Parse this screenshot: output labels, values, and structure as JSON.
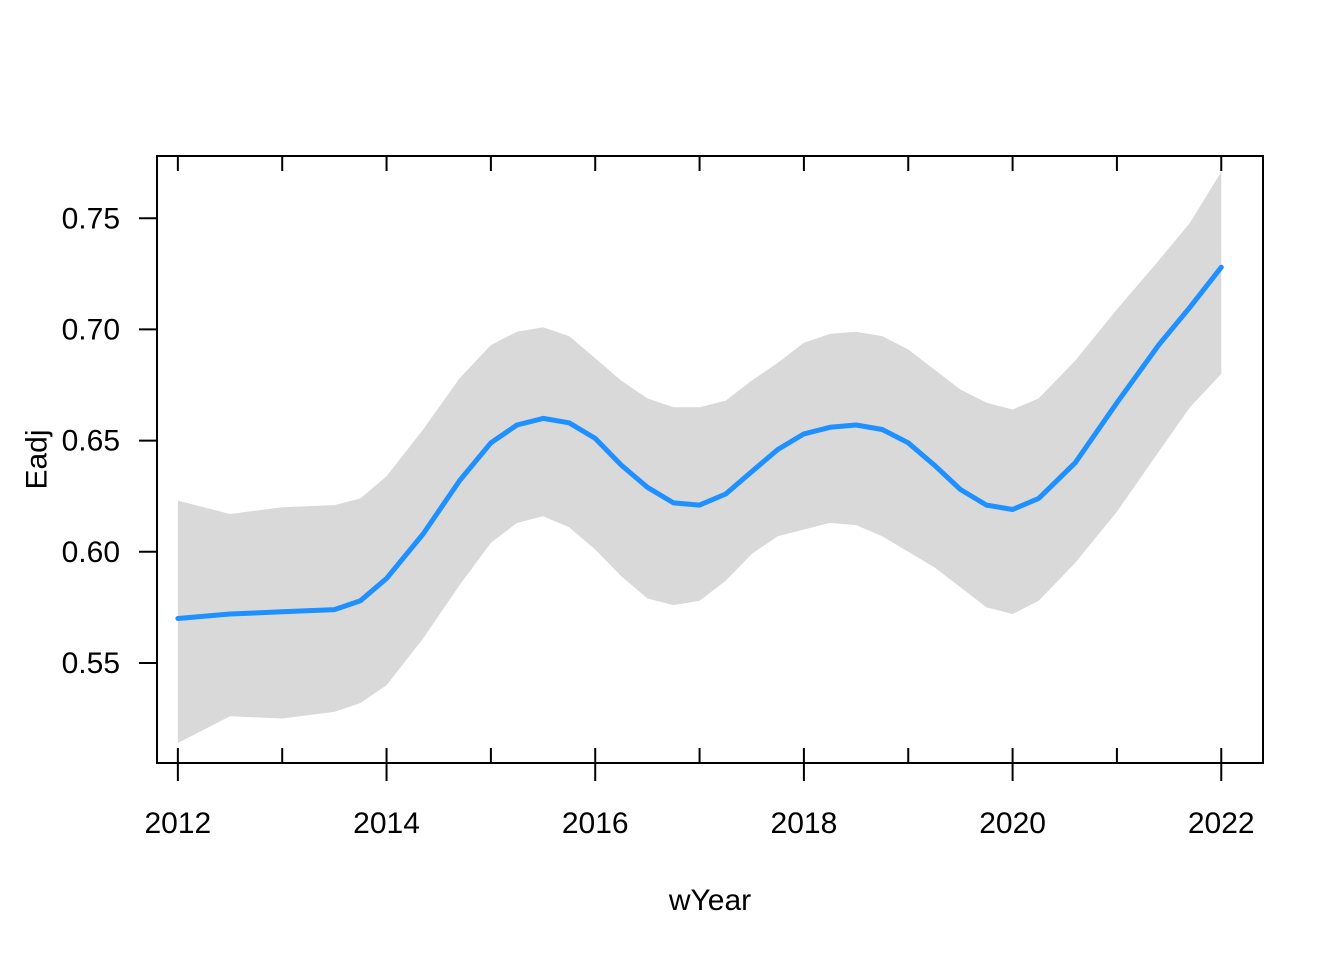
{
  "chart_data": {
    "type": "line",
    "title": "",
    "xlabel": "wYear",
    "ylabel": "Eadj",
    "xlim": [
      2011.8,
      2022.4
    ],
    "ylim": [
      0.505,
      0.778
    ],
    "x_ticks": [
      2012,
      2014,
      2016,
      2018,
      2020,
      2022
    ],
    "x_tick_labels": [
      "2012",
      "2014",
      "2016",
      "2018",
      "2020",
      "2022"
    ],
    "x_minor_ticks": [
      2013,
      2015,
      2017,
      2019,
      2021
    ],
    "y_ticks": [
      0.55,
      0.6,
      0.65,
      0.7,
      0.75
    ],
    "y_tick_labels": [
      "0.55",
      "0.60",
      "0.65",
      "0.70",
      "0.75"
    ],
    "grid": false,
    "line_color": "#1E90FF",
    "band_color": "#D9D9D9",
    "series": [
      {
        "x": [
          2012.0,
          2012.5,
          2013.0,
          2013.5,
          2013.75,
          2014.0,
          2014.35,
          2014.7,
          2015.0,
          2015.25,
          2015.5,
          2015.75,
          2016.0,
          2016.25,
          2016.5,
          2016.75,
          2017.0,
          2017.25,
          2017.5,
          2017.75,
          2018.0,
          2018.25,
          2018.5,
          2018.75,
          2019.0,
          2019.25,
          2019.5,
          2019.75,
          2020.0,
          2020.25,
          2020.6,
          2021.0,
          2021.4,
          2021.7,
          2022.0
        ],
        "y": [
          0.57,
          0.572,
          0.573,
          0.574,
          0.578,
          0.588,
          0.608,
          0.632,
          0.649,
          0.657,
          0.66,
          0.658,
          0.651,
          0.639,
          0.629,
          0.622,
          0.621,
          0.626,
          0.636,
          0.646,
          0.653,
          0.656,
          0.657,
          0.655,
          0.649,
          0.639,
          0.628,
          0.621,
          0.619,
          0.624,
          0.64,
          0.667,
          0.693,
          0.71,
          0.728
        ],
        "lower": [
          0.514,
          0.526,
          0.525,
          0.528,
          0.532,
          0.54,
          0.561,
          0.585,
          0.604,
          0.613,
          0.616,
          0.611,
          0.601,
          0.589,
          0.579,
          0.576,
          0.578,
          0.587,
          0.599,
          0.607,
          0.61,
          0.613,
          0.612,
          0.607,
          0.6,
          0.593,
          0.584,
          0.575,
          0.572,
          0.578,
          0.595,
          0.618,
          0.645,
          0.665,
          0.68
        ],
        "upper": [
          0.623,
          0.617,
          0.62,
          0.621,
          0.624,
          0.634,
          0.655,
          0.678,
          0.693,
          0.699,
          0.701,
          0.697,
          0.687,
          0.677,
          0.669,
          0.665,
          0.665,
          0.668,
          0.677,
          0.685,
          0.694,
          0.698,
          0.699,
          0.697,
          0.691,
          0.682,
          0.673,
          0.667,
          0.664,
          0.669,
          0.686,
          0.709,
          0.731,
          0.748,
          0.771
        ]
      }
    ]
  }
}
